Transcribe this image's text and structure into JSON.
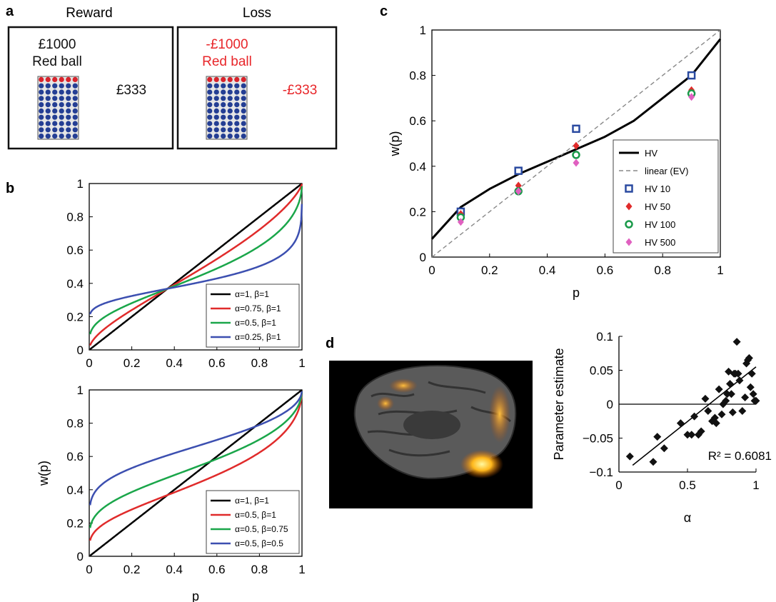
{
  "panels": {
    "a": {
      "letter": "a",
      "reward": {
        "title": "Reward",
        "amount_top": "£1000",
        "ball_label": "Red ball",
        "amount_side": "£333",
        "text_color": "#111111"
      },
      "loss": {
        "title": "Loss",
        "amount_top": "-£1000",
        "ball_label": "Red ball",
        "amount_side": "-£333",
        "text_color": "#e8262a"
      },
      "urn": {
        "rows": 10,
        "cols": 6,
        "red_rows": 1,
        "red_color": "#d8242c",
        "blue_color": "#243e94"
      }
    },
    "b": {
      "letter": "b"
    },
    "c": {
      "letter": "c"
    },
    "d": {
      "letter": "d"
    }
  },
  "chart_data": [
    {
      "id": "b-top",
      "type": "line",
      "xlabel": "",
      "ylabel": "",
      "xlim": [
        0,
        1
      ],
      "ylim": [
        0,
        1
      ],
      "xticks": [
        "0",
        "0.2",
        "0.4",
        "0.6",
        "0.8",
        "1"
      ],
      "yticks": [
        "0",
        "0.2",
        "0.4",
        "0.6",
        "0.8",
        "1"
      ],
      "legend_position": "bottom-right",
      "series": [
        {
          "name": "α=1, β=1",
          "alpha": 1,
          "beta": 1,
          "color": "#000000"
        },
        {
          "name": "α=0.75, β=1",
          "alpha": 0.75,
          "beta": 1,
          "color": "#e02b2b"
        },
        {
          "name": "α=0.5, β=1",
          "alpha": 0.5,
          "beta": 1,
          "color": "#1aa64a"
        },
        {
          "name": "α=0.25, β=1",
          "alpha": 0.25,
          "beta": 1,
          "color": "#3c4fb0"
        }
      ]
    },
    {
      "id": "b-bottom",
      "type": "line",
      "xlabel": "p",
      "ylabel": "w(p)",
      "xlim": [
        0,
        1
      ],
      "ylim": [
        0,
        1
      ],
      "xticks": [
        "0",
        "0.2",
        "0.4",
        "0.6",
        "0.8",
        "1"
      ],
      "yticks": [
        "0",
        "0.2",
        "0.4",
        "0.6",
        "0.8",
        "1"
      ],
      "legend_position": "bottom-right",
      "series": [
        {
          "name": "α=1, β=1",
          "alpha": 1,
          "beta": 1,
          "color": "#000000"
        },
        {
          "name": "α=0.5, β=1",
          "alpha": 0.5,
          "beta": 1,
          "color": "#e02b2b"
        },
        {
          "name": "α=0.5, β=0.75",
          "alpha": 0.5,
          "beta": 0.75,
          "color": "#1aa64a"
        },
        {
          "name": "α=0.5, β=0.5",
          "alpha": 0.5,
          "beta": 0.5,
          "color": "#3c4fb0"
        }
      ]
    },
    {
      "id": "c",
      "type": "scatter",
      "xlabel": "p",
      "ylabel": "w(p)",
      "xlim": [
        0,
        1
      ],
      "ylim": [
        0,
        1
      ],
      "xticks": [
        "0",
        "0.2",
        "0.4",
        "0.6",
        "0.8",
        "1"
      ],
      "yticks": [
        "0",
        "0.2",
        "0.4",
        "0.6",
        "0.8",
        "1"
      ],
      "legend_position": "bottom-right",
      "lines": [
        {
          "name": "HV",
          "style": "solid",
          "color": "#000000",
          "x": [
            0,
            0.1,
            0.2,
            0.3,
            0.4,
            0.5,
            0.6,
            0.7,
            0.8,
            0.9,
            1
          ],
          "y": [
            0.08,
            0.22,
            0.3,
            0.365,
            0.42,
            0.475,
            0.53,
            0.6,
            0.7,
            0.8,
            0.96
          ]
        },
        {
          "name": "linear (EV)",
          "style": "dashed",
          "color": "#888888",
          "x": [
            0,
            1
          ],
          "y": [
            0,
            1
          ]
        }
      ],
      "series": [
        {
          "name": "HV 10",
          "marker": "square",
          "color": "#2a4aa0",
          "x": [
            0.1,
            0.3,
            0.5,
            0.9
          ],
          "y": [
            0.2,
            0.38,
            0.565,
            0.8
          ]
        },
        {
          "name": "HV 50",
          "marker": "diamond",
          "color": "#e02b2b",
          "x": [
            0.1,
            0.3,
            0.5,
            0.9
          ],
          "y": [
            0.19,
            0.315,
            0.49,
            0.735
          ]
        },
        {
          "name": "HV 100",
          "marker": "circle",
          "color": "#1a9a4a",
          "x": [
            0.1,
            0.3,
            0.5,
            0.9
          ],
          "y": [
            0.175,
            0.29,
            0.45,
            0.72
          ]
        },
        {
          "name": "HV 500",
          "marker": "diamond",
          "color": "#e060c0",
          "x": [
            0.1,
            0.3,
            0.5,
            0.9
          ],
          "y": [
            0.155,
            0.29,
            0.415,
            0.705
          ]
        }
      ]
    },
    {
      "id": "d",
      "type": "scatter",
      "xlabel": "α",
      "ylabel": "Parameter estimate",
      "xlim": [
        0,
        1
      ],
      "ylim": [
        -0.1,
        0.1
      ],
      "xticks": [
        "0",
        "0.5",
        "1"
      ],
      "yticks": [
        "−0.1",
        "−0.05",
        "0",
        "0.05",
        "0.1"
      ],
      "annotation": "R² = 0.6081",
      "zero_line": true,
      "marker_color": "#111111",
      "fit": {
        "x": [
          0.1,
          1
        ],
        "y": [
          -0.09,
          0.055
        ]
      },
      "points": {
        "x": [
          0.08,
          0.25,
          0.28,
          0.33,
          0.45,
          0.5,
          0.53,
          0.55,
          0.58,
          0.6,
          0.63,
          0.65,
          0.68,
          0.7,
          0.71,
          0.73,
          0.75,
          0.76,
          0.78,
          0.79,
          0.8,
          0.81,
          0.82,
          0.83,
          0.84,
          0.85,
          0.86,
          0.87,
          0.88,
          0.9,
          0.92,
          0.93,
          0.94,
          0.95,
          0.96,
          0.97,
          0.98,
          0.99,
          1.0
        ],
        "y": [
          -0.077,
          -0.085,
          -0.048,
          -0.065,
          -0.028,
          -0.045,
          -0.045,
          -0.018,
          -0.045,
          -0.04,
          0.008,
          -0.01,
          -0.025,
          -0.02,
          -0.028,
          0.022,
          -0.015,
          0.0,
          0.005,
          0.015,
          0.048,
          0.03,
          0.015,
          -0.012,
          0.045,
          0.045,
          0.092,
          0.045,
          0.035,
          -0.01,
          0.01,
          0.06,
          0.065,
          0.068,
          0.025,
          0.045,
          0.015,
          0.005,
          0.005
        ]
      }
    }
  ]
}
